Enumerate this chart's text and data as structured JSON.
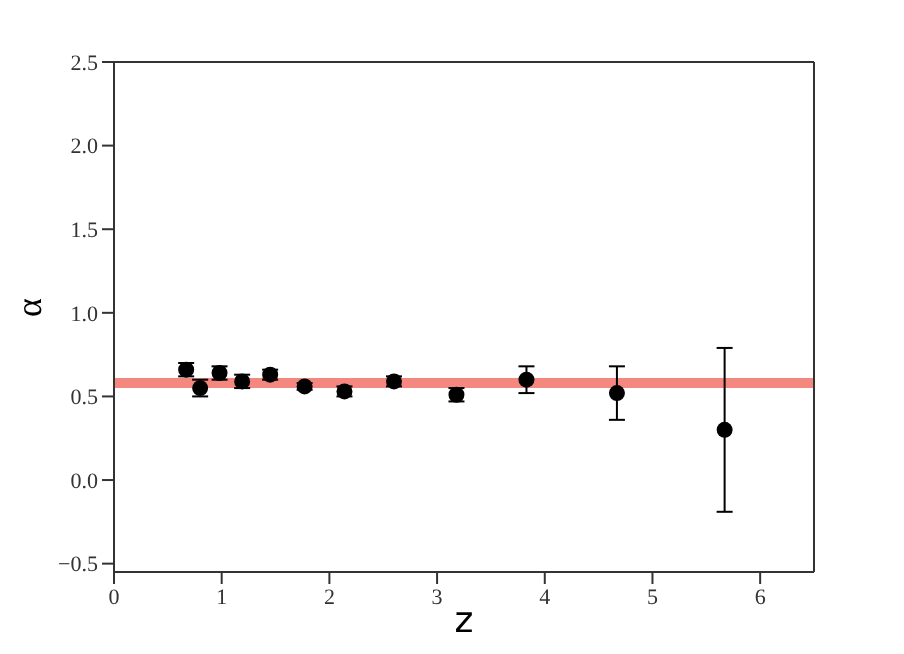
{
  "chart_data": {
    "type": "scatter",
    "xlabel": "z",
    "ylabel": "α",
    "x": [
      0.67,
      0.8,
      0.98,
      1.19,
      1.45,
      1.77,
      2.14,
      2.6,
      3.18,
      3.83,
      4.67,
      5.67
    ],
    "values": [
      0.66,
      0.55,
      0.64,
      0.59,
      0.63,
      0.56,
      0.53,
      0.59,
      0.51,
      0.6,
      0.52,
      0.3
    ],
    "errors": [
      0.04,
      0.05,
      0.04,
      0.04,
      0.03,
      0.02,
      0.03,
      0.03,
      0.04,
      0.08,
      0.16,
      0.49
    ],
    "color": "#000000",
    "marker": "circle",
    "xlim": [
      0,
      6.5
    ],
    "xticks": [
      0,
      1,
      2,
      3,
      4,
      5,
      6
    ],
    "ylim": [
      -0.55,
      2.5
    ],
    "yticks": [
      {
        "value": -0.5,
        "label": "−0.5"
      },
      {
        "value": 0,
        "label": "0.0"
      },
      {
        "value": 0.5,
        "label": "0.5"
      },
      {
        "value": 1,
        "label": "1.0"
      },
      {
        "value": 1.5,
        "label": "1.5"
      },
      {
        "value": 2,
        "label": "2.0"
      },
      {
        "value": 2.5,
        "label": "2.5"
      }
    ],
    "ref_lines": [
      {
        "axis": "y",
        "value": 0.58,
        "color": "#f4877f"
      }
    ]
  }
}
